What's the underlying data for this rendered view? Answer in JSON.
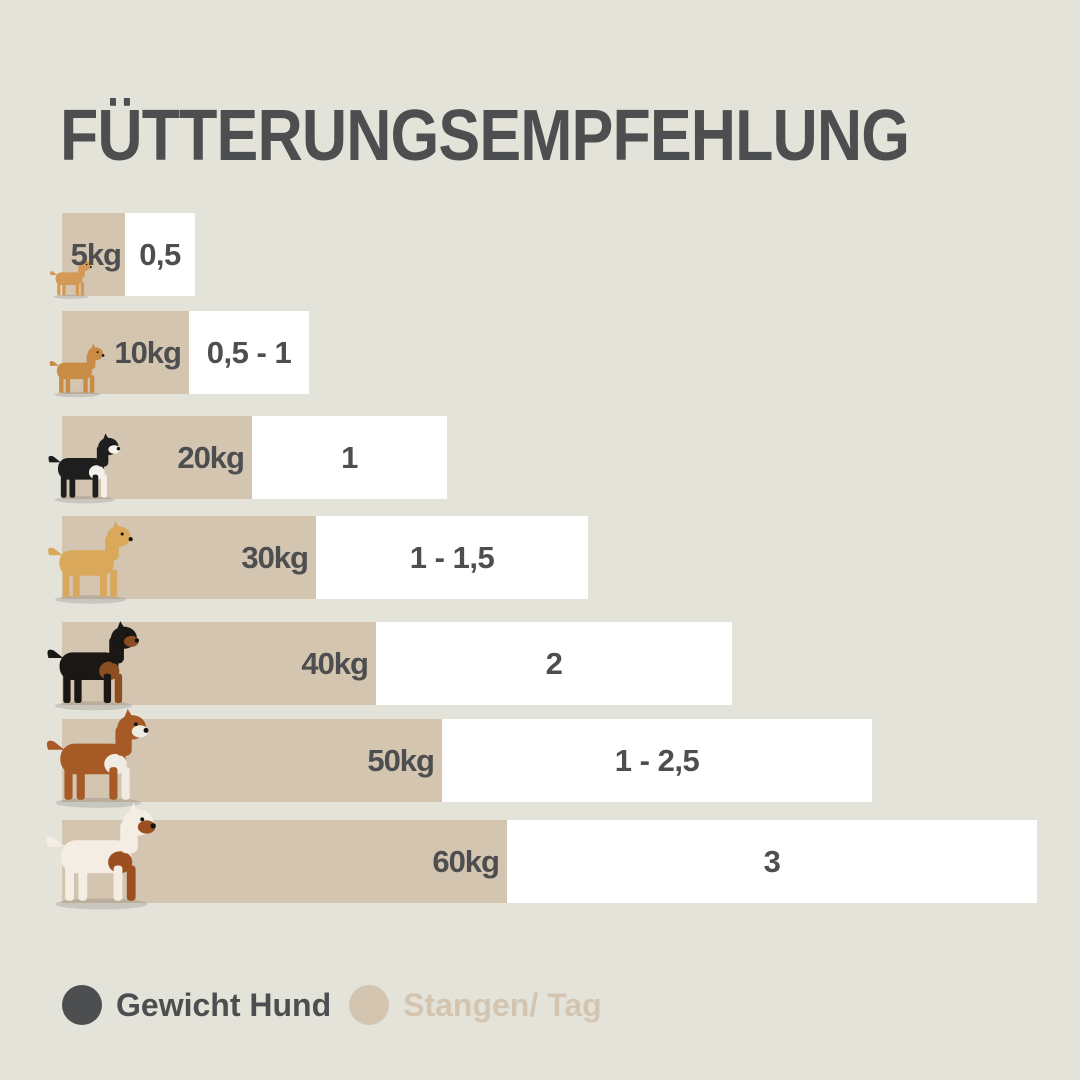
{
  "chart_data": {
    "type": "bar",
    "title": "FÜTTERUNGSEMPFEHLUNG",
    "categories": [
      "5kg",
      "10kg",
      "20kg",
      "30kg",
      "40kg",
      "50kg",
      "60kg"
    ],
    "weights_kg": [
      5,
      10,
      20,
      30,
      40,
      50,
      60
    ],
    "series": [
      {
        "name": "Gewicht Hund",
        "values": [
          5,
          10,
          20,
          30,
          40,
          50,
          60
        ]
      },
      {
        "name": "Stangen/ Tag",
        "values": [
          0.5,
          1,
          1,
          1.5,
          2,
          2.5,
          3
        ]
      }
    ],
    "feed_labels": [
      "0,5",
      "0,5 - 1",
      "1",
      "1 - 1,5",
      "2",
      "1 - 2,5",
      "3"
    ],
    "colors": {
      "weight": "#d4c5b1",
      "feed": "#ffffff",
      "text": "#4d4e4f",
      "background": "#e4e3da",
      "legend_weight": "#4d4e4f",
      "legend_feed": "#d4c5b1"
    },
    "legend": {
      "placement": "bottom-left"
    },
    "dog_icons": [
      "chihuahua-icon",
      "terrier-icon",
      "border-collie-icon",
      "labrador-icon",
      "rottweiler-icon",
      "boxer-icon",
      "saint-bernard-icon"
    ]
  }
}
